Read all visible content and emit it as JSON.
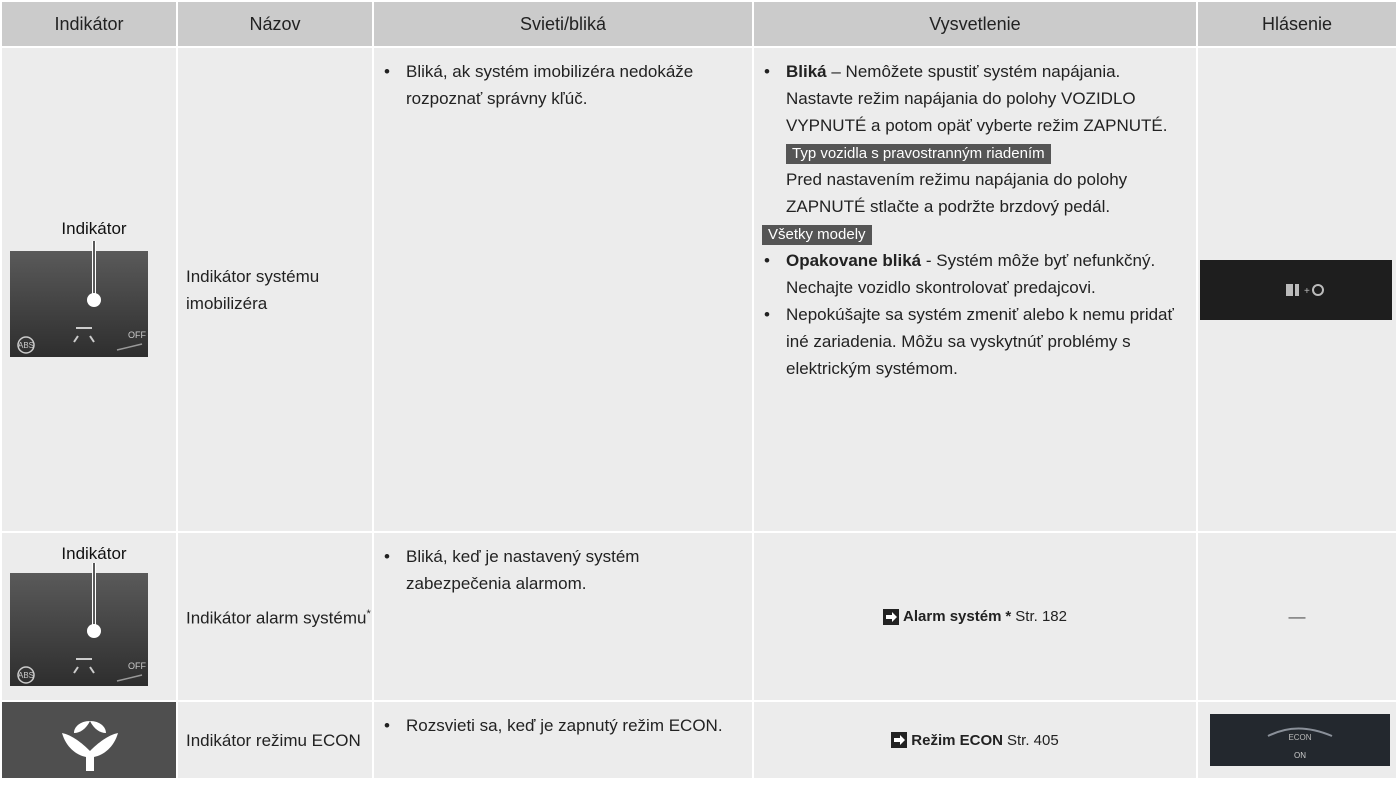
{
  "header": {
    "columns": [
      "Indikátor",
      "Názov",
      "Svieti/bliká",
      "Vysvetlenie",
      "Hlásenie"
    ]
  },
  "rows": [
    {
      "indicator": {
        "label": "Indikátor",
        "icon_texts": [
          "ABS",
          "OFF"
        ]
      },
      "name": "Indikátor systému imobilizéra",
      "status": [
        "Bliká, ak systém imobilizéra nedokáže rozpoznať správny kľúč."
      ],
      "explanation": {
        "bullet1": {
          "bold": "Bliká",
          "text": "– Nemôžete spustiť systém napájania. Nastavte režim napájania do polohy VOZIDLO VYPNUTÉ a potom opäť vyberte režim ZAPNUTÉ."
        },
        "tag1": "Typ vozidla s pravostranným riadením",
        "note1": "Pred nastavením režimu napájania do polohy ZAPNUTÉ stlačte a podržte brzdový pedál.",
        "tag2": "Všetky modely",
        "bullet2": {
          "bold": "Opakovane bliká",
          "text": "- Systém môže byť nefunkčný. Nechajte vozidlo skontrolovať predajcovi."
        },
        "bullet3": "Nepokúšajte sa systém zmeniť alebo k nemu pridať iné zariadenia. Môžu sa vyskytnúť problémy s elektrickým systémom."
      }
    },
    {
      "indicator": {
        "label": "Indikátor",
        "icon_texts": [
          "ABS",
          "OFF"
        ]
      },
      "name": "Indikátor alarm systému",
      "name_mark": "*",
      "status": [
        "Bliká, keď je nastavený systém zabezpečenia alarmom."
      ],
      "explanation": {
        "link": "Alarm systém",
        "mark": "*",
        "page": "Str. 182"
      },
      "message": "—"
    },
    {
      "name": "Indikátor režimu ECON",
      "status": [
        "Rozsvieti sa, keď je zapnutý režim ECON."
      ],
      "explanation": {
        "link": "Režim ECON",
        "page": "Str. 405"
      },
      "message": {
        "texts": [
          "ECON",
          "ON"
        ]
      }
    }
  ]
}
